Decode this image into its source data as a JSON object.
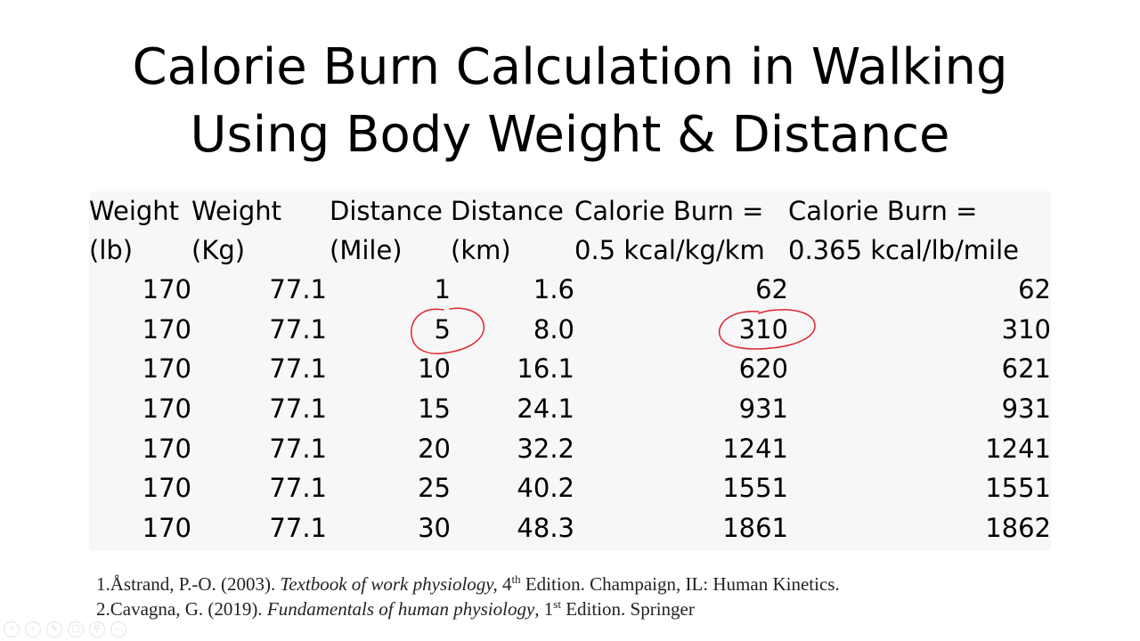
{
  "title": {
    "line1": "Calorie Burn Calculation in Walking",
    "line2": "Using Body Weight & Distance"
  },
  "table": {
    "headers": [
      {
        "line1": "Weight",
        "line2": "(lb)"
      },
      {
        "line1": "Weight",
        "line2": "(Kg)"
      },
      {
        "line1": "Distance",
        "line2": "(Mile)"
      },
      {
        "line1": "Distance",
        "line2": "(km)"
      },
      {
        "line1": "Calorie Burn =",
        "line2": "0.5 kcal/kg/km"
      },
      {
        "line1": "Calorie Burn =",
        "line2": "0.365 kcal/lb/mile"
      }
    ],
    "rows": [
      [
        "170",
        "77.1",
        "1",
        "1.6",
        "62",
        "62"
      ],
      [
        "170",
        "77.1",
        "5",
        "8.0",
        "310",
        "310"
      ],
      [
        "170",
        "77.1",
        "10",
        "16.1",
        "620",
        "621"
      ],
      [
        "170",
        "77.1",
        "15",
        "24.1",
        "931",
        "931"
      ],
      [
        "170",
        "77.1",
        "20",
        "32.2",
        "1241",
        "1241"
      ],
      [
        "170",
        "77.1",
        "25",
        "40.2",
        "1551",
        "1551"
      ],
      [
        "170",
        "77.1",
        "30",
        "48.3",
        "1861",
        "1862"
      ]
    ]
  },
  "annotation_color": "#e0242f",
  "references": [
    {
      "prefix": "1.Åstrand, P.-O. (2003). ",
      "title": "Textbook of work physiology,",
      "edition_num": " 4",
      "edition_sup": "th",
      "rest": " Edition. Champaign, IL: Human Kinetics."
    },
    {
      "prefix": "2.Cavagna, G. (2019). ",
      "title": "Fundamentals of human physiology",
      "edition_num": ", 1",
      "edition_sup": "st",
      "rest": " Edition. Springer"
    }
  ],
  "toolbar": {
    "icons": [
      "back-icon",
      "forward-icon",
      "pen-icon",
      "highlighter-icon",
      "zoom-icon",
      "more-icon"
    ]
  }
}
